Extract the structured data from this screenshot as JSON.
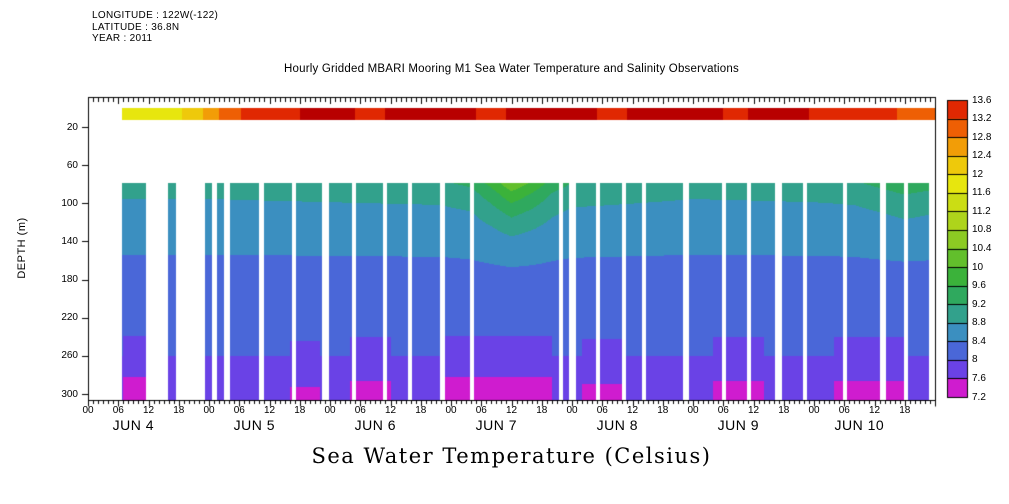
{
  "meta": {
    "longitude_line": "LONGITUDE : 122W(-122)",
    "latitude_line": "LATITUDE : 36.8N",
    "year_line": "YEAR : 2011"
  },
  "chart_data": {
    "type": "heatmap",
    "title": "Hourly Gridded MBARI Mooring M1 Sea Water Temperature and Salinity Observations",
    "caption": "Sea Water Temperature (Celsius)",
    "ylabel": "DEPTH (m)",
    "x_axis": {
      "day_labels": [
        "JUN 4",
        "JUN 5",
        "JUN 6",
        "JUN 7",
        "JUN 8",
        "JUN 9",
        "JUN 10"
      ],
      "hour_tick_labels": [
        "00",
        "06",
        "12",
        "18"
      ],
      "hours_total": 168
    },
    "y_axis": {
      "depth_ticks": [
        20,
        60,
        100,
        140,
        180,
        220,
        260,
        300
      ],
      "unit": "m"
    },
    "colorbar": {
      "tick_labels": [
        "13.6",
        "13.2",
        "12.8",
        "12.4",
        "12",
        "11.6",
        "11.2",
        "10.8",
        "10.4",
        "10",
        "9.6",
        "9.2",
        "8.8",
        "8.4",
        "8",
        "7.6",
        "7.2"
      ],
      "min": 7.2,
      "max": 13.6,
      "interval": 0.4,
      "unit": "Celsius"
    },
    "palette": {
      "bin_min": 7.2,
      "bin_size": 0.4,
      "cell_colors": [
        "#cf1ccf",
        "#6a42e6",
        "#4a67d8",
        "#3b8fc0",
        "#32a18c",
        "#2fa95e",
        "#3bb23a",
        "#62bf2c",
        "#8cca23",
        "#aed41b",
        "#cbdd14",
        "#e7e60e",
        "#eec90b",
        "#f29d07",
        "#ee5f04",
        "#e02802"
      ],
      "over_color": "#b80000"
    },
    "surface": {
      "depth_range_m": [
        0,
        12
      ],
      "start_hour": 6.8,
      "series_hours": [
        6,
        10,
        14,
        18,
        20,
        22,
        24,
        26,
        28,
        31,
        34,
        38,
        44,
        50,
        56,
        62,
        68,
        74,
        80,
        86,
        92,
        98,
        104,
        110,
        116,
        122,
        128,
        134,
        140,
        146,
        152,
        158,
        163,
        168
      ],
      "series_temp_c": [
        11.8,
        11.8,
        11.85,
        11.95,
        12.1,
        12.3,
        12.55,
        12.8,
        13.0,
        13.25,
        13.4,
        13.5,
        13.65,
        13.7,
        13.5,
        13.7,
        13.75,
        13.7,
        13.5,
        13.7,
        13.75,
        13.7,
        13.5,
        13.7,
        13.65,
        13.7,
        13.55,
        13.65,
        13.7,
        13.5,
        13.45,
        13.3,
        13.1,
        12.9
      ]
    },
    "deep": {
      "depth_range_m": [
        78,
        306
      ],
      "start_hour": 6.8,
      "profile_depths_m": [
        78,
        90,
        110,
        140,
        180,
        220,
        260,
        285,
        306
      ],
      "profile_temp_c": [
        9.05,
        8.85,
        8.65,
        8.45,
        8.3,
        8.15,
        8.0,
        7.85,
        7.65
      ],
      "time_variation_hours": [
        7,
        24,
        48,
        70,
        76,
        80,
        84,
        88,
        92,
        96,
        120,
        144,
        152,
        158,
        162,
        166,
        168
      ],
      "time_variation_temp_c": [
        0,
        0,
        0.05,
        0.1,
        0.25,
        0.7,
        1.3,
        0.9,
        0.4,
        0.15,
        0,
        0.05,
        0.1,
        0.3,
        0.45,
        0.35,
        0.3
      ],
      "bottom_cold_spells": [
        [
          7,
          13,
          -0.35
        ],
        [
          40,
          46,
          -0.2
        ],
        [
          52,
          60,
          -0.3
        ],
        [
          70,
          92,
          -0.35
        ],
        [
          98,
          106,
          -0.25
        ],
        [
          124,
          134,
          -0.3
        ],
        [
          148,
          162,
          -0.3
        ]
      ],
      "gap_hours": [
        [
          11.5,
          15.9
        ],
        [
          17.5,
          23.2
        ],
        [
          24.5,
          25.5
        ],
        [
          27,
          28.2
        ],
        [
          34,
          35
        ],
        [
          40.5,
          41.3
        ],
        [
          46.5,
          47.8
        ],
        [
          52.3,
          53.2
        ],
        [
          58.5,
          59.3
        ],
        [
          63.5,
          64.3
        ],
        [
          69.8,
          70.8
        ],
        [
          75.8,
          76.6
        ],
        [
          93.5,
          94.3
        ],
        [
          95.5,
          96.8
        ],
        [
          100.8,
          101.6
        ],
        [
          106,
          106.8
        ],
        [
          109.8,
          110.6
        ],
        [
          118,
          119.2
        ],
        [
          125.8,
          126.6
        ],
        [
          130.8,
          131.6
        ],
        [
          136.3,
          137.6
        ],
        [
          141.8,
          142.6
        ],
        [
          149.8,
          150.6
        ],
        [
          157,
          158.3
        ],
        [
          161.8,
          162.6
        ],
        [
          166.8,
          168
        ]
      ]
    }
  }
}
